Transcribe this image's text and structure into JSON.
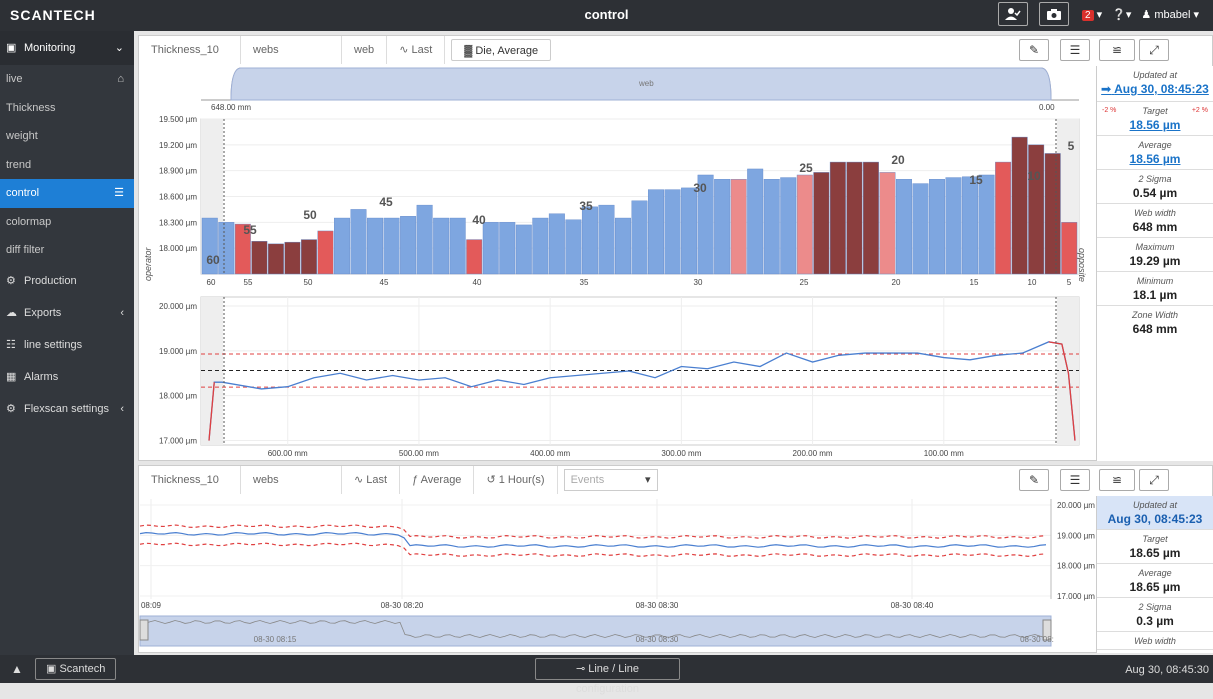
{
  "topbar": {
    "brand": "SCANTECH",
    "title": "control",
    "badge": "2",
    "user": "mbabel"
  },
  "sidebar": {
    "monitoring": "Monitoring",
    "items": [
      {
        "label": "live"
      },
      {
        "label": "Thickness"
      },
      {
        "label": "weight"
      },
      {
        "label": "trend"
      },
      {
        "label": "control"
      },
      {
        "label": "colormap"
      },
      {
        "label": "diff filter"
      }
    ],
    "sections": [
      {
        "label": "Production"
      },
      {
        "label": "Exports"
      },
      {
        "label": "line settings"
      },
      {
        "label": "Alarms"
      },
      {
        "label": "Flexscan settings"
      }
    ]
  },
  "bottombar": {
    "scantech": "Scantech",
    "line": "Line / Line configuration",
    "datetime": "Aug 30, 08:45:30"
  },
  "panel1": {
    "tabs": [
      "Thickness_10",
      "webs",
      "web"
    ],
    "last": "Last",
    "die_avg": "Die, Average",
    "web_label": "web",
    "web_left": "648.00 mm",
    "web_right": "0.00",
    "side_left": "operator",
    "side_right": "opposite",
    "stats": [
      {
        "label": "Updated at",
        "value": "Aug 30, 08:45:23"
      },
      {
        "label": "Target",
        "value": "18.56 µm"
      },
      {
        "label": "Average",
        "value": "18.56 µm"
      },
      {
        "label": "2 Sigma",
        "value": "0.54 µm"
      },
      {
        "label": "Web width",
        "value": "648 mm"
      },
      {
        "label": "Maximum",
        "value": "19.29 µm"
      },
      {
        "label": "Minimum",
        "value": "18.1 µm"
      },
      {
        "label": "Zone Width",
        "value": "648 mm"
      }
    ],
    "pct_minus": "-2 %",
    "pct_plus": "+2 %"
  },
  "panel2": {
    "tabs": [
      "Thickness_10",
      "webs"
    ],
    "last": "Last",
    "average": "Average",
    "hour": "1 Hour(s)",
    "events": "Events",
    "stats": [
      {
        "label": "Updated at",
        "value": "Aug 30, 08:45:23"
      },
      {
        "label": "Target",
        "value": "18.65 µm"
      },
      {
        "label": "Average",
        "value": "18.65 µm"
      },
      {
        "label": "2 Sigma",
        "value": "0.3 µm"
      },
      {
        "label": "Web width",
        "value": ""
      }
    ],
    "nav_labels": [
      "08-30 08:15",
      "08-30 08:30",
      "08-30 08:"
    ]
  },
  "colors": {
    "blue": "#7ea6e0",
    "light_red": "#ec8b8b",
    "red": "#e35a5a",
    "dark_red": "#8b3e3e",
    "line_blue": "#4a7fd0",
    "limit_red": "#e04040"
  },
  "chart_data": [
    {
      "type": "bar",
      "ylabel": "",
      "ylim": [
        17.7,
        19.5
      ],
      "yticks": [
        "19.500 µm",
        "19.200 µm",
        "18.900 µm",
        "18.600 µm",
        "18.300 µm",
        "18.000 µm"
      ],
      "xticks": [
        "60",
        "55",
        "50",
        "45",
        "40",
        "35",
        "30",
        "25",
        "20",
        "15",
        "10",
        "5"
      ],
      "annotations": [
        "60",
        "55",
        "50",
        "45",
        "40",
        "35",
        "30",
        "25",
        "20",
        "15",
        "10",
        "5"
      ],
      "values": [
        18.35,
        18.3,
        18.28,
        18.08,
        18.05,
        18.07,
        18.1,
        18.2,
        18.35,
        18.45,
        18.35,
        18.35,
        18.37,
        18.5,
        18.35,
        18.35,
        18.1,
        18.3,
        18.3,
        18.27,
        18.35,
        18.4,
        18.33,
        18.48,
        18.5,
        18.35,
        18.55,
        18.68,
        18.68,
        18.7,
        18.85,
        18.8,
        18.8,
        18.92,
        18.8,
        18.82,
        18.85,
        18.88,
        19.0,
        19.0,
        19.0,
        18.88,
        18.8,
        18.75,
        18.8,
        18.82,
        18.83,
        18.85,
        19.0,
        19.29,
        19.2,
        19.1,
        18.3
      ],
      "status": [
        "b",
        "b",
        "r",
        "d",
        "d",
        "d",
        "d",
        "r",
        "b",
        "b",
        "b",
        "b",
        "b",
        "b",
        "b",
        "b",
        "r",
        "b",
        "b",
        "b",
        "b",
        "b",
        "b",
        "b",
        "b",
        "b",
        "b",
        "b",
        "b",
        "b",
        "b",
        "b",
        "l",
        "b",
        "b",
        "b",
        "l",
        "d",
        "d",
        "d",
        "d",
        "l",
        "b",
        "b",
        "b",
        "b",
        "b",
        "b",
        "r",
        "d",
        "d",
        "d",
        "r"
      ]
    },
    {
      "type": "line",
      "ylim": [
        16.9,
        20.2
      ],
      "yticks": [
        "20.000 µm",
        "19.000 µm",
        "18.000 µm",
        "17.000 µm"
      ],
      "xticks": [
        "600.00 mm",
        "500.00 mm",
        "400.00 mm",
        "300.00 mm",
        "200.00 mm",
        "100.00 mm"
      ],
      "target": 18.56,
      "upper": 18.93,
      "lower": 18.19,
      "profile": [
        [
          660,
          17.0
        ],
        [
          656,
          18.3
        ],
        [
          650,
          18.3
        ],
        [
          620,
          18.15
        ],
        [
          600,
          18.2
        ],
        [
          580,
          18.4
        ],
        [
          560,
          18.5
        ],
        [
          540,
          18.35
        ],
        [
          520,
          18.45
        ],
        [
          500,
          18.35
        ],
        [
          480,
          18.4
        ],
        [
          460,
          18.2
        ],
        [
          440,
          18.35
        ],
        [
          420,
          18.25
        ],
        [
          400,
          18.4
        ],
        [
          380,
          18.45
        ],
        [
          360,
          18.5
        ],
        [
          340,
          18.55
        ],
        [
          320,
          18.4
        ],
        [
          300,
          18.65
        ],
        [
          280,
          18.6
        ],
        [
          260,
          18.75
        ],
        [
          240,
          18.65
        ],
        [
          220,
          18.95
        ],
        [
          200,
          18.75
        ],
        [
          180,
          18.9
        ],
        [
          160,
          18.95
        ],
        [
          140,
          18.95
        ],
        [
          120,
          18.95
        ],
        [
          100,
          18.85
        ],
        [
          80,
          18.8
        ],
        [
          60,
          18.9
        ],
        [
          40,
          18.95
        ],
        [
          20,
          19.2
        ],
        [
          10,
          19.15
        ],
        [
          5,
          18.5
        ],
        [
          0,
          17.0
        ]
      ]
    },
    {
      "type": "line",
      "ylim": [
        16.9,
        20.2
      ],
      "yticks": [
        "20.000 µm",
        "19.000 µm",
        "18.000 µm",
        "17.000 µm"
      ],
      "xticks": [
        "08:09",
        "08-30 08:20",
        "08-30 08:30",
        "08-30 08:40"
      ],
      "upper_before": 19.3,
      "lower_before": 18.7,
      "series_before": 19.05,
      "upper_after": 18.95,
      "lower_after": 18.35,
      "series_after": 18.65
    }
  ]
}
